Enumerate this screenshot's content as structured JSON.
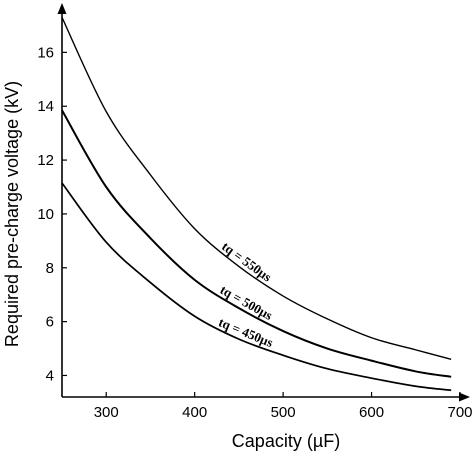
{
  "chart_data": {
    "type": "line",
    "xlabel": "Capacity (µF)",
    "ylabel": "Required pre-charge voltage (kV)",
    "xlim": [
      250,
      700
    ],
    "ylim": [
      3.2,
      17.5
    ],
    "x_ticks": [
      300,
      400,
      500,
      600,
      700
    ],
    "y_ticks": [
      4,
      6,
      8,
      10,
      12,
      14,
      16
    ],
    "grid": false,
    "legend": "none",
    "series": [
      {
        "name": "tq = 550µs",
        "x": [
          250,
          300,
          350,
          400,
          450,
          500,
          550,
          600,
          650,
          690
        ],
        "values": [
          17.3,
          13.8,
          11.45,
          9.45,
          8.05,
          6.95,
          6.1,
          5.4,
          4.95,
          4.6
        ]
      },
      {
        "name": "tq = 500µs",
        "x": [
          250,
          300,
          350,
          400,
          450,
          500,
          550,
          600,
          650,
          690
        ],
        "values": [
          13.85,
          11.0,
          9.1,
          7.55,
          6.5,
          5.65,
          5.0,
          4.55,
          4.15,
          3.95
        ]
      },
      {
        "name": "tq = 450µs",
        "x": [
          250,
          300,
          350,
          400,
          450,
          500,
          550,
          600,
          650,
          690
        ],
        "values": [
          11.15,
          8.95,
          7.45,
          6.2,
          5.35,
          4.75,
          4.25,
          3.9,
          3.6,
          3.45
        ]
      }
    ]
  }
}
